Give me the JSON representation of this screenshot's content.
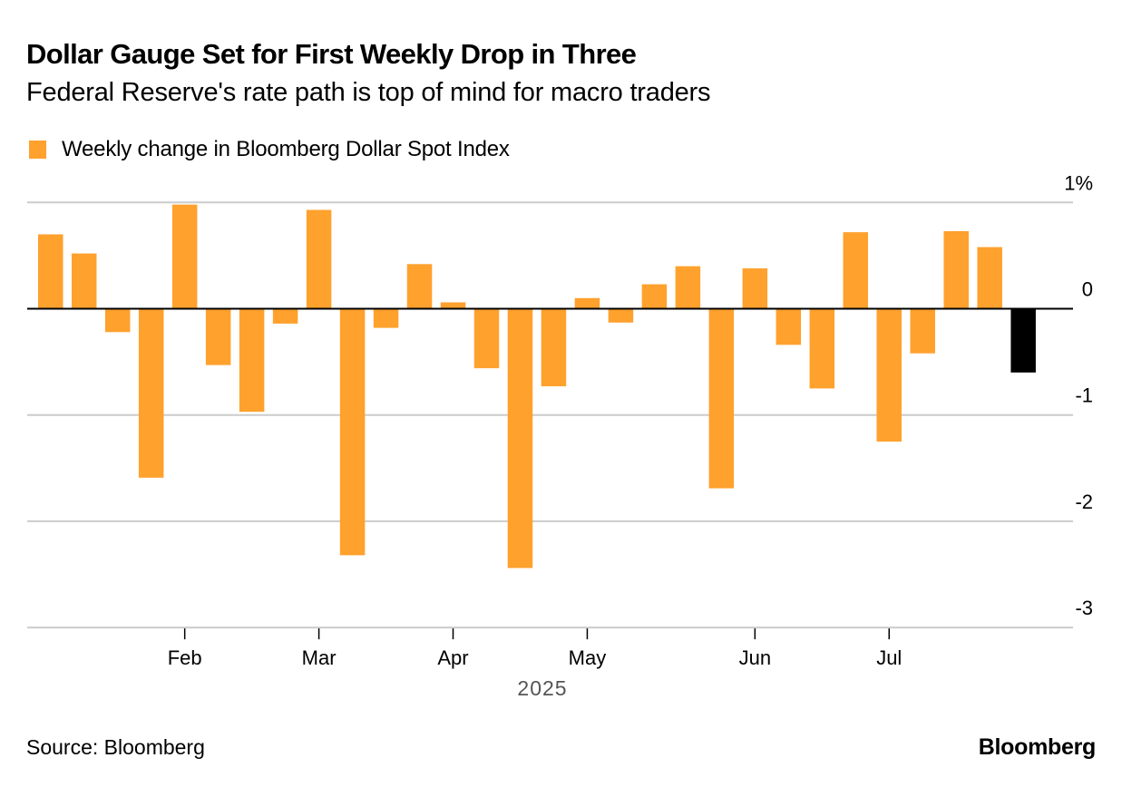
{
  "header": {
    "title": "Dollar Gauge Set for First Weekly Drop in Three",
    "subtitle": "Federal Reserve's rate path is top of mind for macro traders"
  },
  "footer": {
    "source": "Source: Bloomberg",
    "brand": "Bloomberg"
  },
  "colors": {
    "bar": "#FFA12D",
    "highlight": "#000000",
    "grid": "#CCCCCC",
    "zero_line": "#000000",
    "year_label": "#555555"
  },
  "chart_data": {
    "type": "bar",
    "title": "Dollar Gauge Set for First Weekly Drop in Three",
    "subtitle": "Federal Reserve's rate path is top of mind for macro traders",
    "legend": [
      {
        "name": "Weekly change in Bloomberg Dollar Spot Index",
        "color": "#FFA12D"
      }
    ],
    "legend_position": "top-left",
    "xlabel": "2025",
    "ylabel": "",
    "y_unit": "%",
    "ylim": [
      -3,
      1
    ],
    "y_ticks": [
      {
        "value": 1,
        "label": "1%"
      },
      {
        "value": 0,
        "label": "0"
      },
      {
        "value": -1,
        "label": "-1"
      },
      {
        "value": -2,
        "label": "-2"
      },
      {
        "value": -3,
        "label": "-3"
      }
    ],
    "y_axis_side": "right",
    "grid": true,
    "x_ticks": [
      {
        "label": "Feb",
        "bar_index": 4
      },
      {
        "label": "Mar",
        "bar_index": 8
      },
      {
        "label": "Apr",
        "bar_index": 12
      },
      {
        "label": "May",
        "bar_index": 16
      },
      {
        "label": "Jun",
        "bar_index": 21
      },
      {
        "label": "Jul",
        "bar_index": 25
      }
    ],
    "series": [
      {
        "name": "Weekly change in Bloomberg Dollar Spot Index",
        "values": [
          0.7,
          0.52,
          -0.22,
          -1.59,
          0.98,
          -0.53,
          -0.97,
          -0.14,
          0.93,
          -2.32,
          -0.18,
          0.42,
          0.06,
          -0.56,
          -2.44,
          -0.73,
          0.1,
          -0.13,
          0.23,
          0.4,
          -1.69,
          0.38,
          -0.34,
          -0.75,
          0.72,
          -1.25,
          -0.42,
          0.73,
          0.58,
          -0.6
        ],
        "highlight_index": 29
      }
    ]
  }
}
